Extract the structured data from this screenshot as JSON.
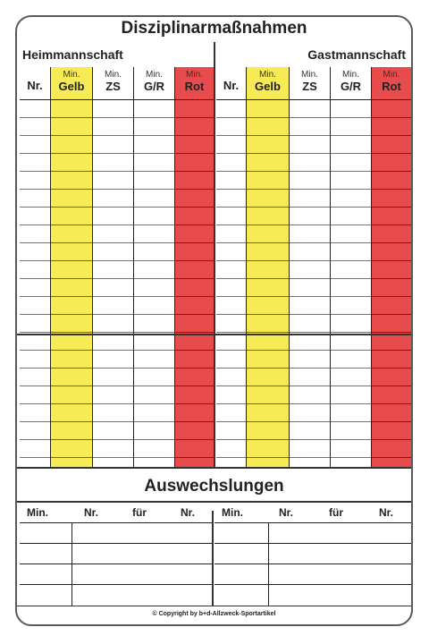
{
  "title": "Disziplinarmaßnahmen",
  "teams": {
    "home": "Heimmannschaft",
    "guest": "Gastmannschaft"
  },
  "columns": {
    "nr": "Nr.",
    "min": "Min.",
    "gelb": "Gelb",
    "zs": "ZS",
    "gr": "G/R",
    "rot": "Rot"
  },
  "subs": {
    "title": "Auswechslungen",
    "min": "Min.",
    "nr": "Nr.",
    "fuer": "für"
  },
  "copyright": "© Copyright by b+d-Allzweck-Sportartikel",
  "colors": {
    "yellow": "#f6ea55",
    "red": "#e84b4b",
    "line": "#222222"
  }
}
